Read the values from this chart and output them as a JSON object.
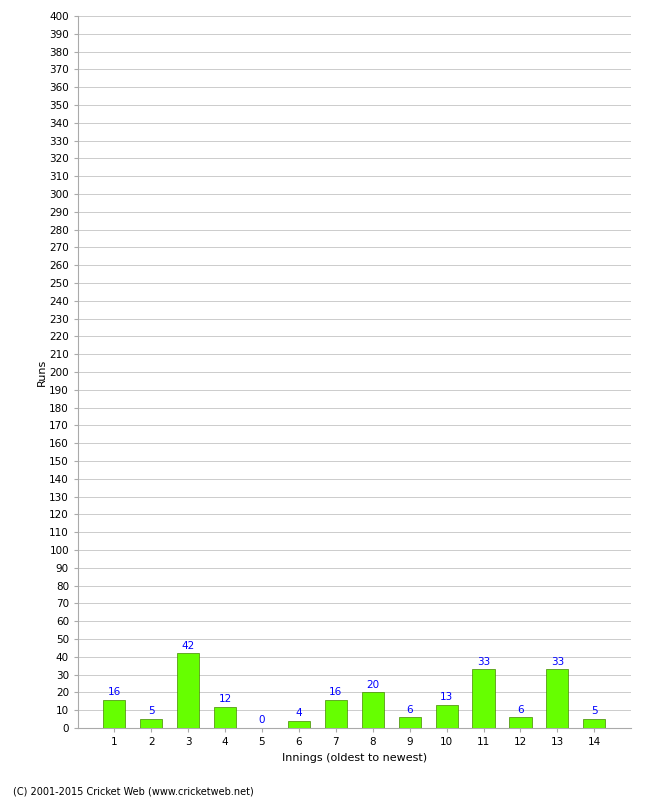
{
  "xlabel": "Innings (oldest to newest)",
  "ylabel": "Runs",
  "categories": [
    1,
    2,
    3,
    4,
    5,
    6,
    7,
    8,
    9,
    10,
    11,
    12,
    13,
    14
  ],
  "values": [
    16,
    5,
    42,
    12,
    0,
    4,
    16,
    20,
    6,
    13,
    33,
    6,
    33,
    5
  ],
  "bar_color": "#66ff00",
  "bar_edge_color": "#448800",
  "label_color": "blue",
  "ylim": [
    0,
    400
  ],
  "grid_color": "#cccccc",
  "background_color": "#ffffff",
  "footer": "(C) 2001-2015 Cricket Web (www.cricketweb.net)",
  "label_fontsize": 7.5,
  "axis_tick_fontsize": 7.5,
  "xlabel_fontsize": 8,
  "ylabel_fontsize": 8
}
